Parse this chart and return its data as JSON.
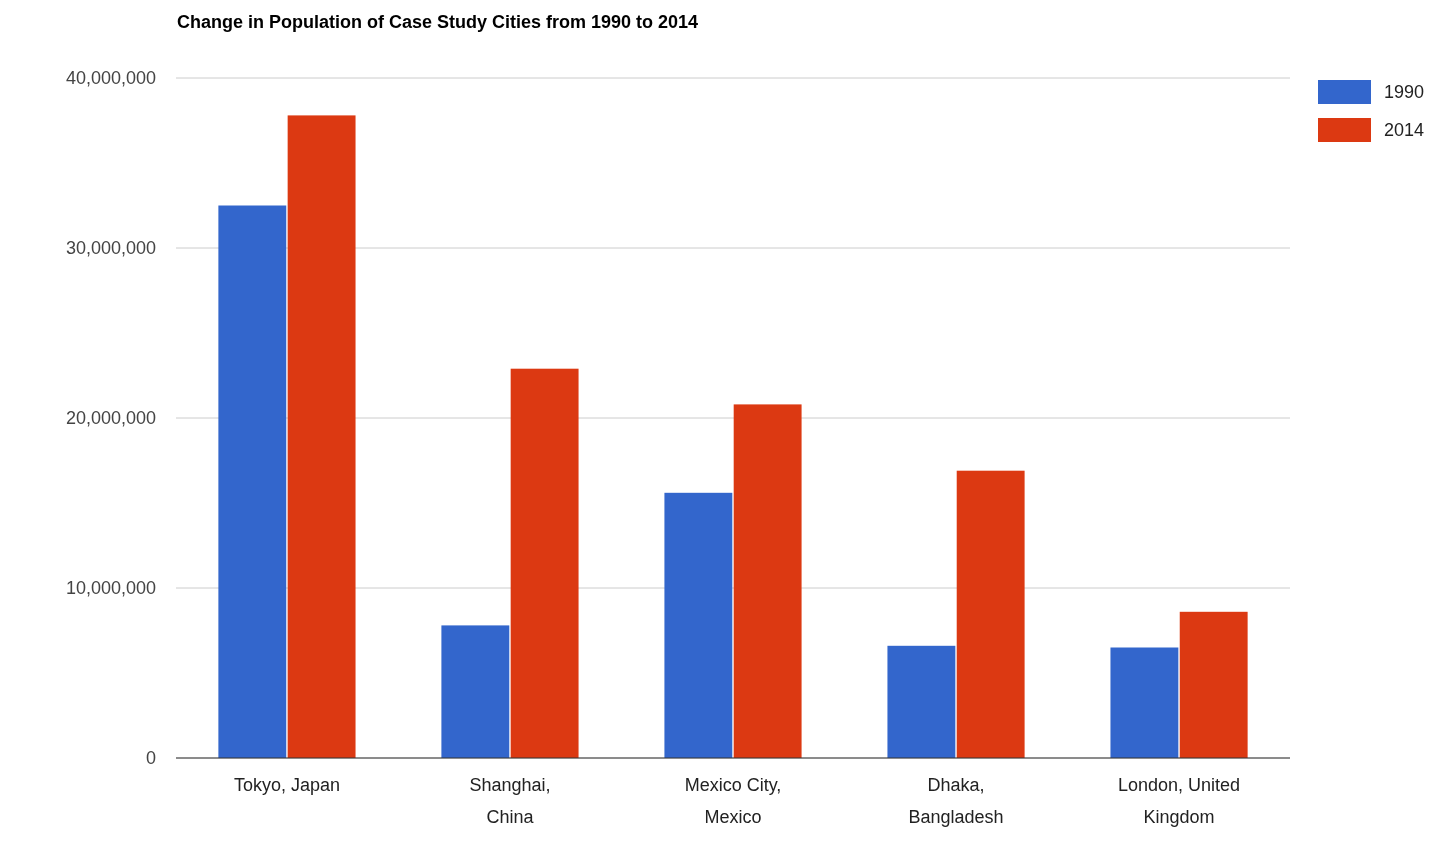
{
  "chart_data": {
    "type": "bar",
    "title": "Change in Population of Case Study Cities from 1990 to 2014",
    "categories": [
      "Tokyo, Japan",
      "Shanghai, China",
      "Mexico City, Mexico",
      "Dhaka, Bangladesh",
      "London, United Kingdom"
    ],
    "series": [
      {
        "name": "1990",
        "color": "#3366cc",
        "values": [
          32500000,
          7800000,
          15600000,
          6600000,
          6500000
        ]
      },
      {
        "name": "2014",
        "color": "#dc3912",
        "values": [
          37800000,
          22900000,
          20800000,
          16900000,
          8600000
        ]
      }
    ],
    "ylim": [
      0,
      40000000
    ],
    "yticks": [
      0,
      {
        "value": 10000000,
        "label": "10,000,000"
      },
      {
        "value": 20000000,
        "label": "20,000,000"
      },
      {
        "value": 30000000,
        "label": "30,000,000"
      },
      {
        "value": 40000000,
        "label": "40,000,000"
      }
    ],
    "grid": "y",
    "legend": "top right"
  }
}
